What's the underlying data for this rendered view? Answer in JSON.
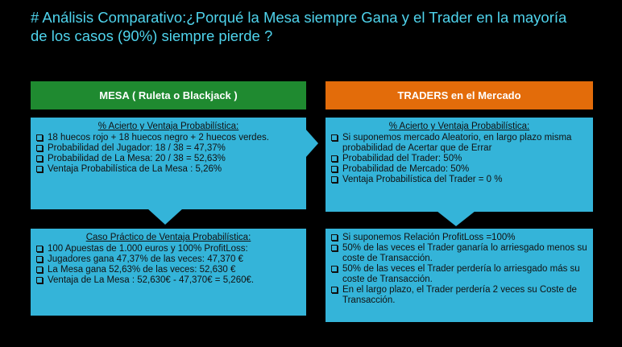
{
  "title": "# Análisis Comparativo:¿Porqué  la Mesa siempre Gana y el Trader en la mayoría de los casos (90%) siempre pierde ?",
  "columns": [
    {
      "header": "MESA ( Ruleta o Blackjack )",
      "boxes": [
        {
          "heading": "% Acierto y Ventaja Probabilística:",
          "items": [
            "18 huecos rojo + 18 huecos negro + 2 huecos verdes.",
            "Probabilidad del Jugador: 18 / 38 = 47,37%",
            "Probabilidad de La Mesa: 20 / 38 = 52,63%",
            "Ventaja Probabilística de La Mesa : 5,26%"
          ]
        },
        {
          "heading": "Caso Práctico de Ventaja Probabilística:",
          "items": [
            "100 Apuestas de 1.000 euros y 100% ProfitLoss:",
            "Jugadores gana 47,37% de las veces: 47,370 €",
            "La Mesa gana 52,63% de las veces: 52,630 €",
            "Ventaja de La Mesa : 52,630€ - 47,370€ = 5,260€."
          ]
        }
      ]
    },
    {
      "header": "TRADERS en el Mercado",
      "boxes": [
        {
          "heading": "% Acierto y Ventaja Probabilística:",
          "items": [
            "Si suponemos mercado Aleatorio, en largo plazo misma probabilidad de Acertar que de Errar",
            "Probabilidad del Trader: 50%",
            "Probabilidad de Mercado: 50%",
            "Ventaja Probabilística del Trader = 0 %"
          ]
        },
        {
          "items": [
            "Si suponemos Relación ProfitLoss =100%",
            "50% de las veces el Trader ganaría lo arriesgado menos su coste de Transacción.",
            "50% de las veces el Trader perdería lo arriesgado más su coste de Transacción.",
            "En el largo plazo, el Trader perdería 2 veces su Coste de Transacción."
          ]
        }
      ]
    }
  ]
}
